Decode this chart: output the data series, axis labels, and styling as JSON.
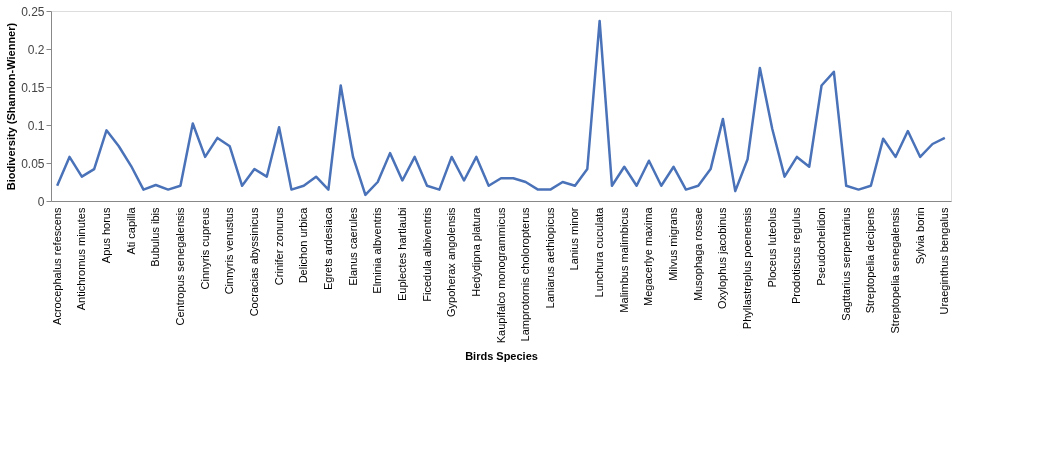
{
  "chart_data": {
    "type": "line",
    "xlabel": "Birds Species",
    "ylabel": "Biodiversity (Shannon-Wienner)",
    "categories": [
      "Acrocephalus refescens",
      null,
      "Antichromus minutes",
      null,
      "Apus horus",
      null,
      "Ati capilla",
      null,
      "Bubulus ibis",
      null,
      "Centropus senegalensis",
      null,
      "Cinnyris cupreus",
      null,
      "Cinnyris venustus",
      null,
      "Cocracias abyssinicus",
      null,
      "Crinifer zonurus",
      null,
      "Delichon urbica",
      null,
      "Egrets ardesiaca",
      null,
      "Elanus caerules",
      null,
      "Elminia albventris",
      null,
      "Euplectes hartlaubi",
      null,
      "Ficedula albiventris",
      null,
      "Gypoherax angolensis",
      null,
      "Hedydipna platura",
      null,
      "Kaupifalco monogrammicus",
      null,
      "Lamprotornis choloropterus",
      null,
      "Laniarus aethiopicus",
      null,
      "Lanius minor",
      null,
      "Lunchura cuculata",
      null,
      "Malimbus malimbicus",
      null,
      "Megacerlye maxima",
      null,
      "Milvus migrans",
      null,
      "Musophaga rossae",
      null,
      "Oxylophus jacobinus",
      null,
      "Phyllastreplus poenensis",
      null,
      "Ploceus luteolus",
      null,
      "Prodotiscus regulus",
      null,
      "Pseudochelidon",
      null,
      "Sagttarius serpentarius",
      null,
      "Streptopelia decipens",
      null,
      "Streptopelia senegalensis",
      null,
      "Sylvia borin",
      null,
      "Uraeginthus bengalus"
    ],
    "series": [
      {
        "color": "#4a72b8",
        "values": [
          0.02,
          0.058,
          0.032,
          0.042,
          0.093,
          0.072,
          0.046,
          0.015,
          0.021,
          0.015,
          0.02,
          0.102,
          0.058,
          0.083,
          0.072,
          0.02,
          0.042,
          0.032,
          0.097,
          0.015,
          0.02,
          0.032,
          0.015,
          0.152,
          0.058,
          0.008,
          0.025,
          0.063,
          0.027,
          0.058,
          0.02,
          0.015,
          0.058,
          0.027,
          0.058,
          0.02,
          0.03,
          0.03,
          0.025,
          0.015,
          0.015,
          0.025,
          0.02,
          0.042,
          0.237,
          0.02,
          0.045,
          0.02,
          0.053,
          0.02,
          0.045,
          0.015,
          0.02,
          0.042,
          0.108,
          0.013,
          0.055,
          0.175,
          0.095,
          0.032,
          0.058,
          0.045,
          0.152,
          0.17,
          0.02,
          0.015,
          0.02,
          0.082,
          0.058,
          0.092,
          0.058,
          0.075,
          0.083
        ]
      }
    ],
    "ylim": [
      0,
      0.25
    ],
    "yticks": [
      0,
      0.05,
      0.1,
      0.15,
      0.2,
      0.25
    ],
    "grid": false,
    "legend": false,
    "marker": "none",
    "line_style": "solid"
  }
}
